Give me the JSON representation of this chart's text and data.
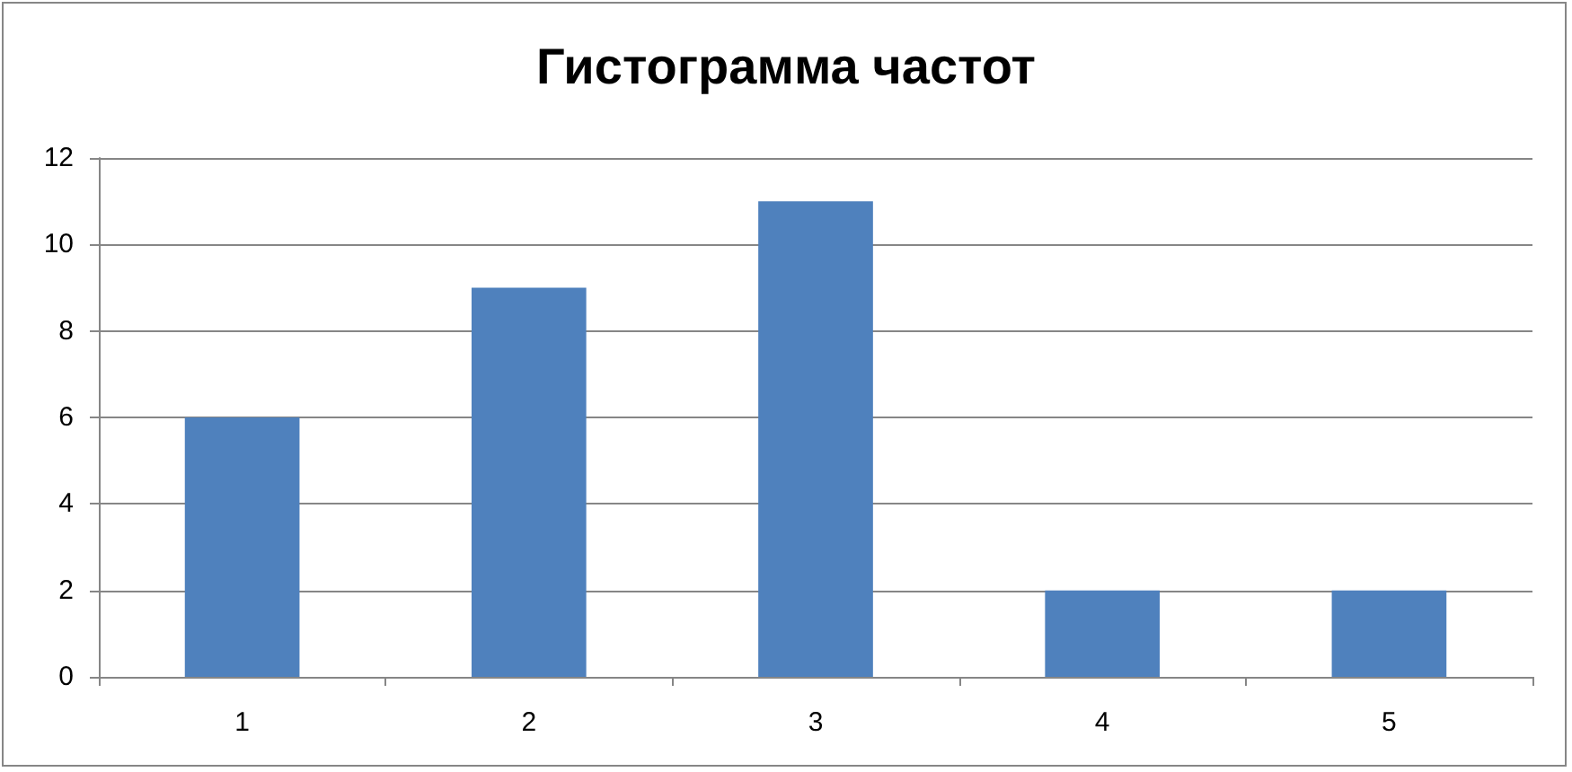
{
  "chart_data": {
    "type": "bar",
    "title": "Гистограмма частот",
    "categories": [
      "1",
      "2",
      "3",
      "4",
      "5"
    ],
    "values": [
      6,
      9,
      11,
      2,
      2
    ],
    "color": "#4f81bd",
    "ylim": [
      0,
      12
    ],
    "yticks": [
      0,
      2,
      4,
      6,
      8,
      10,
      12
    ],
    "grid": "y"
  }
}
